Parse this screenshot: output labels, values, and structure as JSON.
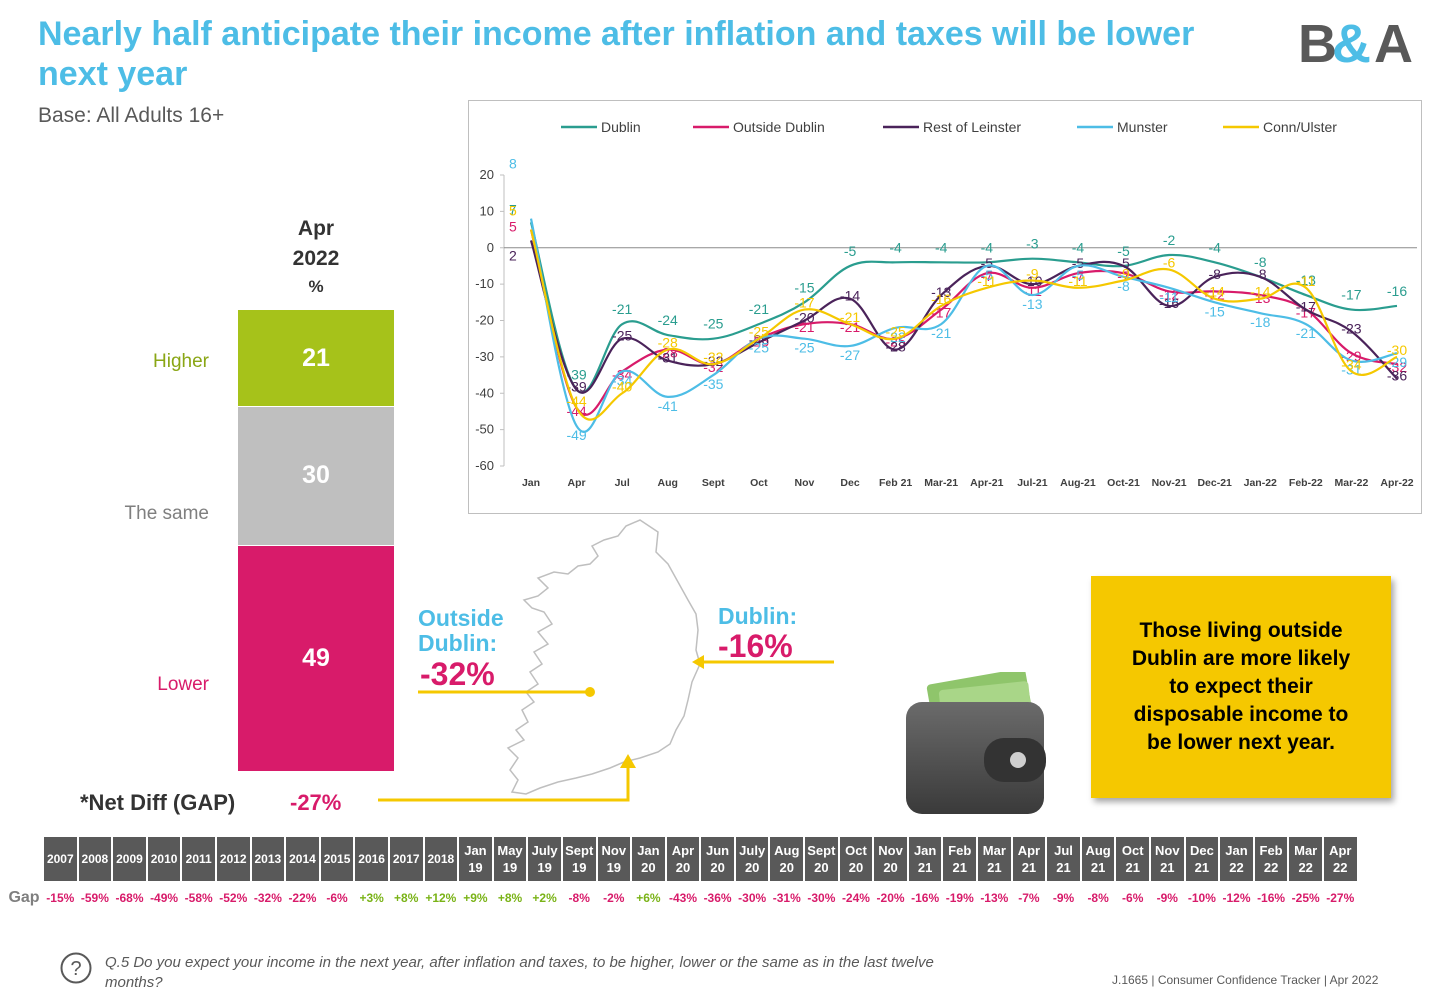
{
  "title": "Nearly half anticipate their income after inflation and taxes will be lower next year",
  "base": "Base: All Adults 16+",
  "logo_text": "B&A",
  "stack": {
    "head": [
      "Apr",
      "2022",
      "%"
    ],
    "segments": [
      {
        "label": "Higher",
        "value": 21,
        "color": "#a6c21a",
        "label_color": "#8aa615"
      },
      {
        "label": "The same",
        "value": 30,
        "color": "#bfbfbf",
        "label_color": "#7f7f7f"
      },
      {
        "label": "Lower",
        "value": 49,
        "color": "#d81b6a",
        "label_color": "#d81b6a"
      }
    ],
    "net_label": "*Net Diff (GAP)",
    "net_value": "-27%"
  },
  "map": {
    "outside_label": "Outside Dublin:",
    "outside_value": "-32%",
    "dublin_label": "Dublin:",
    "dublin_value": "-16%"
  },
  "callout": "Those living outside Dublin are more likely to expect their disposable income to be lower next year.",
  "chart_data": {
    "type": "line",
    "categories": [
      "Jan",
      "Apr",
      "Jul",
      "Aug",
      "Sept",
      "Oct",
      "Nov",
      "Dec",
      "Feb 21",
      "Mar-21",
      "Apr-21",
      "Jul-21",
      "Aug-21",
      "Oct-21",
      "Nov-21",
      "Dec-21",
      "Jan-22",
      "Feb-22",
      "Mar-22",
      "Apr-22"
    ],
    "ylim": [
      -60,
      20
    ],
    "yticks": [
      20,
      10,
      0,
      -10,
      -20,
      -30,
      -40,
      -50,
      -60
    ],
    "legend_position": "top",
    "series": [
      {
        "name": "Dublin",
        "color": "#2a9d8f",
        "values": [
          7,
          -39,
          -21,
          -24,
          -25,
          -21,
          -15,
          -5,
          -4,
          -4,
          -4,
          -3,
          -4,
          -5,
          -2,
          -4,
          -8,
          -13,
          -17,
          -16
        ]
      },
      {
        "name": "Outside Dublin",
        "color": "#d81b6a",
        "values": [
          5,
          -44,
          -34,
          -28,
          -32,
          -25,
          -21,
          -21,
          -25,
          -17,
          -7,
          -11,
          -7,
          -7,
          -12,
          -12,
          -13,
          -17,
          -29,
          -32
        ]
      },
      {
        "name": "Rest of Leinster",
        "color": "#4a235a",
        "values": [
          2,
          -39,
          -25,
          -31,
          -32,
          -26,
          -20,
          -14,
          -28,
          -13,
          -5,
          -10,
          -5,
          -5,
          -16,
          -8,
          -8,
          -17,
          -23,
          -36
        ]
      },
      {
        "name": "Munster",
        "color": "#4dbde6",
        "values": [
          8,
          -49,
          -34,
          -41,
          -35,
          -25,
          -25,
          -27,
          -22,
          -21,
          -5,
          -13,
          -5,
          -8,
          -11,
          -15,
          -18,
          -21,
          -31,
          -29
        ]
      },
      {
        "name": "Conn/Ulster",
        "color": "#f5c800",
        "values": [
          5,
          -44,
          -40,
          -28,
          -32,
          -25,
          -17,
          -21,
          -25,
          -16,
          -11,
          -9,
          -11,
          -9,
          -6,
          -14,
          -14,
          -11,
          -34,
          -30
        ]
      }
    ]
  },
  "gap_table": {
    "row_label": "Gap",
    "headers": [
      [
        "2007"
      ],
      [
        "2008"
      ],
      [
        "2009"
      ],
      [
        "2010"
      ],
      [
        "2011"
      ],
      [
        "2012"
      ],
      [
        "2013"
      ],
      [
        "2014"
      ],
      [
        "2015"
      ],
      [
        "2016"
      ],
      [
        "2017"
      ],
      [
        "2018"
      ],
      [
        "Jan",
        "19"
      ],
      [
        "May",
        "19"
      ],
      [
        "July",
        "19"
      ],
      [
        "Sept",
        "19"
      ],
      [
        "Nov",
        "19"
      ],
      [
        "Jan",
        "20"
      ],
      [
        "Apr",
        "20"
      ],
      [
        "Jun",
        "20"
      ],
      [
        "July",
        "20"
      ],
      [
        "Aug",
        "20"
      ],
      [
        "Sept",
        "20"
      ],
      [
        "Oct",
        "20"
      ],
      [
        "Nov",
        "20"
      ],
      [
        "Jan",
        "21"
      ],
      [
        "Feb",
        "21"
      ],
      [
        "Mar",
        "21"
      ],
      [
        "Apr",
        "21"
      ],
      [
        "Jul",
        "21"
      ],
      [
        "Aug",
        "21"
      ],
      [
        "Oct",
        "21"
      ],
      [
        "Nov",
        "21"
      ],
      [
        "Dec",
        "21"
      ],
      [
        "Jan",
        "22"
      ],
      [
        "Feb",
        "22"
      ],
      [
        "Mar",
        "22"
      ],
      [
        "Apr",
        "22"
      ]
    ],
    "values": [
      "-15%",
      "-59%",
      "-68%",
      "-49%",
      "-58%",
      "-52%",
      "-32%",
      "-22%",
      "-6%",
      "+3%",
      "+8%",
      "+12%",
      "+9%",
      "+8%",
      "+2%",
      "-8%",
      "-2%",
      "+6%",
      "-43%",
      "-36%",
      "-30%",
      "-31%",
      "-30%",
      "-24%",
      "-20%",
      "-16%",
      "-19%",
      "-13%",
      "-7%",
      "-9%",
      "-8%",
      "-6%",
      "-9%",
      "-10%",
      "-12%",
      "-16%",
      "-25%",
      "-27%"
    ],
    "neg_color": "#d81b6a",
    "pos_color": "#7ab317"
  },
  "question": "Q.5  Do you expect your income in the next year, after inflation and taxes, to be higher, lower or the same as in the last twelve months?",
  "footer": "J.1665  | Consumer Confidence Tracker |  Apr 2022"
}
